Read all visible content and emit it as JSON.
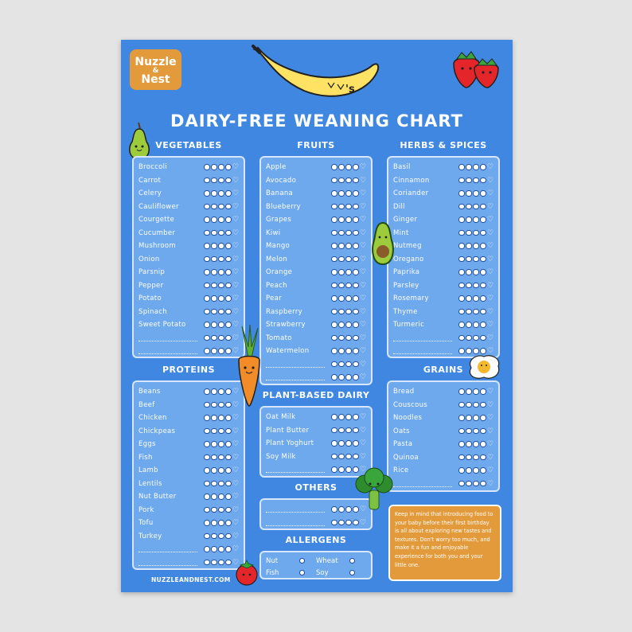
{
  "logo": {
    "line1": "Nuzzle",
    "line2": "&",
    "line3": "Nest"
  },
  "banana_text": "'s",
  "title": "DAIRY-FREE WEANING CHART",
  "sections": {
    "vegetables": {
      "title": "VEGETABLES",
      "items": [
        "Broccoli",
        "Carrot",
        "Celery",
        "Cauliflower",
        "Courgette",
        "Cucumber",
        "Mushroom",
        "Onion",
        "Parsnip",
        "Pepper",
        "Potato",
        "Spinach",
        "Sweet Potato"
      ],
      "blanks": 2
    },
    "fruits": {
      "title": "FRUITS",
      "items": [
        "Apple",
        "Avocado",
        "Banana",
        "Blueberry",
        "Grapes",
        "Kiwi",
        "Mango",
        "Melon",
        "Orange",
        "Peach",
        "Pear",
        "Raspberry",
        "Strawberry",
        "Tomato",
        "Watermelon"
      ],
      "blanks": 2
    },
    "herbs": {
      "title": "HERBS & SPICES",
      "items": [
        "Basil",
        "Cinnamon",
        "Coriander",
        "Dill",
        "Ginger",
        "Mint",
        "Nutmeg",
        "Oregano",
        "Paprika",
        "Parsley",
        "Rosemary",
        "Thyme",
        "Turmeric"
      ],
      "blanks": 2
    },
    "proteins": {
      "title": "PROTEINS",
      "items": [
        "Beans",
        "Beef",
        "Chicken",
        "Chickpeas",
        "Eggs",
        "Fish",
        "Lamb",
        "Lentils",
        "Nut Butter",
        "Pork",
        "Tofu",
        "Turkey"
      ],
      "blanks": 2
    },
    "plant_dairy": {
      "title": "PLANT-BASED DAIRY",
      "items": [
        "Oat Milk",
        "Plant Butter",
        "Plant Yoghurt",
        "Soy Milk"
      ],
      "blanks": 1
    },
    "grains": {
      "title": "GRAINS",
      "items": [
        "Bread",
        "Couscous",
        "Noodles",
        "Oats",
        "Pasta",
        "Quinoa",
        "Rice"
      ],
      "blanks": 1
    },
    "others": {
      "title": "OTHERS",
      "items": [],
      "blanks": 2
    }
  },
  "allergens": {
    "title": "ALLERGENS",
    "items": [
      "Nut",
      "Wheat",
      "Fish",
      "Soy"
    ]
  },
  "note": "Keep in mind that introducing food to your baby before their first birthday is all about exploring new tastes and textures. Don't worry too much, and make it a fun and enjoyable experience for both you and your little one.",
  "website": "NUZZLEANDNEST.COM",
  "colors": {
    "background": "#3f87e0",
    "box": "#6ea9ee",
    "accent": "#e39a3b"
  }
}
